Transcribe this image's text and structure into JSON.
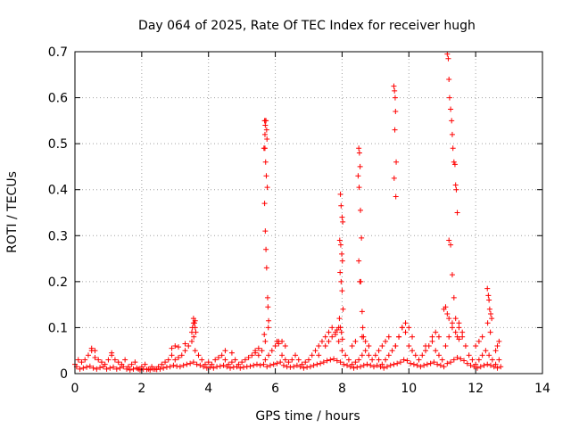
{
  "chart_data": {
    "type": "scatter",
    "title": "Day 064 of 2025, Rate Of TEC Index for receiver hugh",
    "xlabel": "GPS time / hours",
    "ylabel": "ROTI / TECUs",
    "xlim": [
      0,
      14
    ],
    "ylim": [
      0,
      0.7
    ],
    "xticks": [
      0,
      2,
      4,
      6,
      8,
      10,
      12,
      14
    ],
    "yticks": [
      0,
      0.1,
      0.2,
      0.3,
      0.4,
      0.5,
      0.6,
      0.7
    ],
    "xtick_labels": [
      "0",
      "2",
      "4",
      "6",
      "8",
      "10",
      "12",
      "14"
    ],
    "ytick_labels": [
      "0",
      "0.1",
      "0.2",
      "0.3",
      "0.4",
      "0.5",
      "0.6",
      "0.7"
    ],
    "grid": true,
    "marker": "plus",
    "color": "#ff0000",
    "series": [
      {
        "x": [
          0.0,
          0.1,
          0.2,
          0.3,
          0.4,
          0.5,
          0.6,
          0.7,
          0.8,
          0.9,
          1.0,
          1.1,
          1.2,
          1.3,
          1.4,
          1.5,
          1.6,
          1.7,
          1.8,
          1.9,
          2.0,
          2.1,
          2.2,
          2.3,
          2.4,
          2.5,
          2.6,
          2.7,
          2.8,
          2.9,
          3.0,
          3.1,
          3.2,
          3.3,
          3.4,
          3.5,
          3.6,
          3.7,
          3.8,
          3.9,
          4.0,
          4.1,
          4.2,
          4.3,
          4.4,
          4.5,
          4.6,
          4.7,
          4.8,
          4.9,
          5.0,
          5.1,
          5.2,
          5.3,
          5.4,
          5.5,
          5.6,
          5.7,
          5.8,
          5.9,
          6.0,
          6.1,
          6.2,
          6.3,
          6.4,
          6.5,
          6.6,
          6.7,
          6.8,
          6.9,
          7.0,
          7.1,
          7.2,
          7.3,
          7.4,
          7.5,
          7.6,
          7.7,
          7.8,
          7.9,
          8.0,
          8.1,
          8.2,
          8.3,
          8.4,
          8.5,
          8.6,
          8.7,
          8.8,
          8.9,
          9.0,
          9.1,
          9.2,
          9.3,
          9.4,
          9.5,
          9.6,
          9.7,
          9.8,
          9.9,
          10.0,
          10.1,
          10.2,
          10.3,
          10.4,
          10.5,
          10.6,
          10.7,
          10.8,
          10.9,
          11.0,
          11.1,
          11.2,
          11.3,
          11.4,
          11.5,
          11.6,
          11.7,
          11.8,
          11.9,
          12.0,
          12.1,
          12.2,
          12.3,
          12.4,
          12.5,
          12.6,
          12.7,
          0.05,
          0.15,
          0.25,
          0.35,
          0.45,
          0.55,
          0.65,
          0.75,
          0.85,
          0.95,
          1.05,
          1.15,
          1.25,
          1.35,
          1.45,
          1.55,
          1.65,
          1.75,
          1.85,
          1.95,
          2.05,
          2.15,
          2.25,
          2.35,
          2.45,
          2.55,
          2.65,
          2.75,
          2.85,
          2.95,
          3.05,
          3.15,
          3.25,
          3.35,
          3.45,
          3.55,
          3.65,
          3.75,
          3.85,
          3.95,
          4.05,
          4.15,
          4.25,
          4.35,
          4.45,
          4.55,
          4.65,
          4.75,
          4.85,
          4.95,
          5.05,
          5.15,
          5.25,
          5.35,
          5.45,
          5.55,
          5.65,
          5.75,
          5.85,
          5.95,
          6.05,
          6.15,
          6.25,
          6.35,
          6.45,
          6.55,
          6.65,
          6.75,
          6.85,
          6.95,
          7.05,
          7.15,
          7.25,
          7.35,
          7.45,
          7.55,
          7.65,
          7.75,
          7.85,
          7.95,
          8.05,
          8.15,
          8.25,
          8.35,
          8.45,
          8.55,
          8.65,
          8.75,
          8.85,
          8.95,
          9.05,
          9.15,
          9.25,
          9.35,
          9.45,
          9.55,
          9.65,
          9.75,
          9.85,
          9.95,
          10.05,
          10.15,
          10.25,
          10.35,
          10.45,
          10.55,
          10.65,
          10.75,
          10.85,
          10.95,
          11.05,
          11.15,
          11.25,
          11.35,
          11.45,
          11.55,
          11.65,
          11.75,
          11.85,
          11.95,
          12.05,
          12.15,
          12.25,
          12.35,
          12.45,
          12.55,
          12.65,
          12.75,
          0.5,
          0.6,
          1.1,
          2.9,
          3.0,
          3.1,
          3.3,
          3.5,
          3.55,
          3.6,
          4.5,
          4.7,
          5.4,
          5.5,
          6.05,
          6.1,
          6.2,
          6.3,
          7.3,
          7.5,
          7.6,
          7.7,
          7.8,
          7.85,
          7.9,
          8.3,
          8.4,
          8.6,
          8.7,
          8.8,
          9.1,
          9.2,
          9.3,
          9.4,
          9.6,
          9.7,
          9.8,
          9.9,
          10.0,
          10.1,
          10.5,
          10.7,
          10.8,
          10.9,
          11.05,
          11.5,
          11.6,
          12.0,
          12.1,
          12.2,
          12.6,
          12.65,
          12.7,
          3.55,
          3.6,
          3.62,
          3.56,
          3.58,
          3.52,
          5.68,
          5.7,
          5.72,
          5.74,
          5.69,
          5.71,
          5.73,
          5.76,
          5.68,
          5.7,
          5.72,
          5.74,
          5.77,
          5.78,
          5.79,
          5.8,
          5.66,
          5.69,
          5.71,
          5.75,
          5.67,
          5.7,
          7.95,
          7.97,
          8.0,
          8.02,
          7.93,
          7.96,
          7.99,
          8.01,
          7.94,
          7.97,
          8.0,
          8.03,
          7.92,
          7.95,
          7.98,
          8.01,
          8.5,
          8.52,
          8.54,
          8.48,
          8.51,
          8.55,
          8.58,
          8.5,
          8.53,
          8.56,
          8.6,
          8.62,
          8.64,
          9.55,
          9.57,
          9.59,
          9.6,
          9.58,
          9.62,
          9.56,
          9.61,
          11.15,
          11.18,
          11.2,
          11.22,
          11.25,
          11.28,
          11.3,
          11.32,
          11.35,
          11.38,
          11.4,
          11.42,
          11.45,
          11.2,
          11.25,
          11.3,
          11.35,
          11.1,
          11.15,
          11.2,
          11.3,
          11.4,
          11.45,
          11.5,
          12.35,
          12.38,
          12.4,
          12.42,
          12.45,
          12.48,
          12.36,
          12.44
        ],
        "y": [
          0.02,
          0.03,
          0.025,
          0.03,
          0.04,
          0.05,
          0.035,
          0.03,
          0.025,
          0.02,
          0.03,
          0.04,
          0.03,
          0.025,
          0.02,
          0.03,
          0.015,
          0.02,
          0.025,
          0.01,
          0.015,
          0.02,
          0.01,
          0.015,
          0.01,
          0.015,
          0.02,
          0.025,
          0.03,
          0.04,
          0.03,
          0.035,
          0.04,
          0.05,
          0.06,
          0.07,
          0.05,
          0.04,
          0.03,
          0.02,
          0.025,
          0.02,
          0.03,
          0.035,
          0.04,
          0.03,
          0.02,
          0.025,
          0.03,
          0.02,
          0.025,
          0.03,
          0.035,
          0.04,
          0.05,
          0.04,
          0.05,
          0.03,
          0.04,
          0.05,
          0.06,
          0.07,
          0.04,
          0.03,
          0.025,
          0.03,
          0.04,
          0.03,
          0.02,
          0.025,
          0.03,
          0.04,
          0.05,
          0.06,
          0.07,
          0.08,
          0.09,
          0.1,
          0.085,
          0.07,
          0.05,
          0.04,
          0.03,
          0.02,
          0.025,
          0.03,
          0.04,
          0.05,
          0.04,
          0.03,
          0.04,
          0.03,
          0.02,
          0.03,
          0.04,
          0.05,
          0.06,
          0.08,
          0.1,
          0.09,
          0.06,
          0.05,
          0.04,
          0.03,
          0.04,
          0.05,
          0.06,
          0.07,
          0.05,
          0.04,
          0.03,
          0.06,
          0.08,
          0.1,
          0.12,
          0.11,
          0.09,
          0.06,
          0.04,
          0.03,
          0.02,
          0.03,
          0.04,
          0.05,
          0.04,
          0.03,
          0.02,
          0.03,
          0.015,
          0.01,
          0.012,
          0.014,
          0.016,
          0.012,
          0.01,
          0.013,
          0.015,
          0.01,
          0.012,
          0.014,
          0.01,
          0.012,
          0.015,
          0.01,
          0.008,
          0.01,
          0.012,
          0.008,
          0.01,
          0.009,
          0.008,
          0.01,
          0.009,
          0.01,
          0.012,
          0.014,
          0.015,
          0.018,
          0.016,
          0.015,
          0.018,
          0.02,
          0.022,
          0.025,
          0.02,
          0.018,
          0.015,
          0.012,
          0.014,
          0.012,
          0.015,
          0.016,
          0.018,
          0.015,
          0.012,
          0.014,
          0.015,
          0.012,
          0.014,
          0.015,
          0.016,
          0.018,
          0.02,
          0.018,
          0.02,
          0.015,
          0.018,
          0.02,
          0.022,
          0.025,
          0.018,
          0.015,
          0.014,
          0.015,
          0.018,
          0.015,
          0.012,
          0.014,
          0.015,
          0.018,
          0.02,
          0.022,
          0.025,
          0.028,
          0.03,
          0.032,
          0.028,
          0.025,
          0.02,
          0.018,
          0.015,
          0.012,
          0.014,
          0.015,
          0.018,
          0.02,
          0.018,
          0.015,
          0.018,
          0.015,
          0.012,
          0.015,
          0.018,
          0.02,
          0.022,
          0.025,
          0.03,
          0.028,
          0.022,
          0.02,
          0.018,
          0.015,
          0.018,
          0.02,
          0.022,
          0.025,
          0.02,
          0.018,
          0.015,
          0.022,
          0.025,
          0.03,
          0.035,
          0.032,
          0.028,
          0.022,
          0.018,
          0.015,
          0.012,
          0.015,
          0.018,
          0.02,
          0.018,
          0.015,
          0.012,
          0.015,
          0.055,
          0.05,
          0.045,
          0.055,
          0.06,
          0.058,
          0.065,
          0.09,
          0.11,
          0.1,
          0.05,
          0.045,
          0.045,
          0.055,
          0.07,
          0.065,
          0.07,
          0.06,
          0.04,
          0.06,
          0.07,
          0.08,
          0.09,
          0.095,
          0.1,
          0.06,
          0.07,
          0.08,
          0.07,
          0.06,
          0.05,
          0.06,
          0.07,
          0.08,
          0.06,
          0.08,
          0.1,
          0.11,
          0.1,
          0.08,
          0.06,
          0.08,
          0.09,
          0.08,
          0.14,
          0.1,
          0.08,
          0.06,
          0.07,
          0.08,
          0.05,
          0.06,
          0.07,
          0.12,
          0.115,
          0.09,
          0.08,
          0.11,
          0.1,
          0.55,
          0.54,
          0.55,
          0.53,
          0.49,
          0.46,
          0.43,
          0.405,
          0.37,
          0.31,
          0.27,
          0.23,
          0.165,
          0.145,
          0.1,
          0.115,
          0.49,
          0.52,
          0.55,
          0.51,
          0.085,
          0.07,
          0.39,
          0.365,
          0.34,
          0.33,
          0.29,
          0.28,
          0.26,
          0.245,
          0.22,
          0.2,
          0.18,
          0.14,
          0.12,
          0.1,
          0.09,
          0.075,
          0.49,
          0.48,
          0.45,
          0.43,
          0.405,
          0.355,
          0.295,
          0.245,
          0.2,
          0.2,
          0.135,
          0.1,
          0.08,
          0.625,
          0.615,
          0.6,
          0.57,
          0.53,
          0.46,
          0.425,
          0.385,
          0.695,
          0.685,
          0.64,
          0.6,
          0.575,
          0.55,
          0.52,
          0.49,
          0.46,
          0.455,
          0.41,
          0.4,
          0.35,
          0.29,
          0.28,
          0.215,
          0.165,
          0.145,
          0.13,
          0.12,
          0.11,
          0.09,
          0.08,
          0.075,
          0.185,
          0.17,
          0.16,
          0.14,
          0.13,
          0.12,
          0.11,
          0.09
        ]
      }
    ]
  }
}
